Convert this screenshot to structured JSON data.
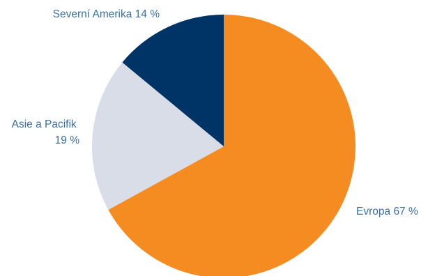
{
  "chart_data": {
    "type": "pie",
    "title": "",
    "start_angle_deg": 0,
    "direction": "clockwise",
    "slices": [
      {
        "label": "Evropa",
        "value": 67,
        "value_text": "67 %",
        "color": "#f48c22"
      },
      {
        "label": "Asie a Pacifik",
        "value": 19,
        "value_text": "19 %",
        "color": "#d8dde8"
      },
      {
        "label": "Severní Amerika",
        "value": 14,
        "value_text": "14 %",
        "color": "#003466"
      }
    ],
    "label_color": "#3a6fa5",
    "legend": "none"
  }
}
